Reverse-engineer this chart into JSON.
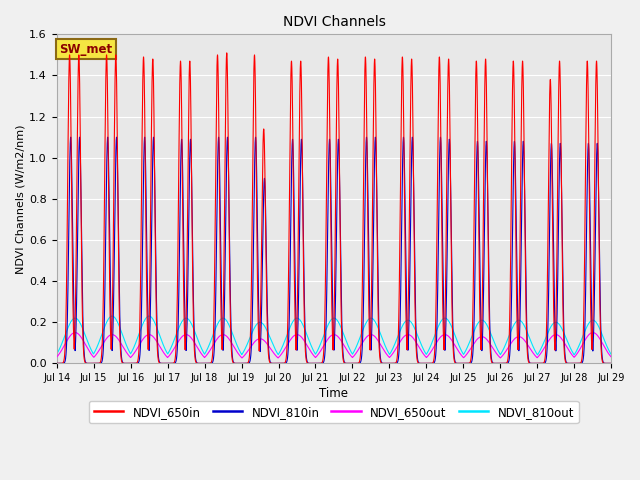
{
  "title": "NDVI Channels",
  "xlabel": "Time",
  "ylabel": "NDVI Channels (W/m2/nm)",
  "ylim": [
    0.0,
    1.6
  ],
  "yticks": [
    0.0,
    0.2,
    0.4,
    0.6,
    0.8,
    1.0,
    1.2,
    1.4,
    1.6
  ],
  "xtick_labels": [
    "Jul 14",
    "Jul 15",
    "Jul 16",
    "Jul 17",
    "Jul 18",
    "Jul 19",
    "Jul 20",
    "Jul 21",
    "Jul 22",
    "Jul 23",
    "Jul 24",
    "Jul 25",
    "Jul 26",
    "Jul 27",
    "Jul 28",
    "Jul 29"
  ],
  "annotation_text": "SW_met",
  "annotation_bg": "#f5e642",
  "annotation_border": "#8b6914",
  "annotation_text_color": "#8b0000",
  "colors": {
    "NDVI_650in": "#ff0000",
    "NDVI_810in": "#0000cc",
    "NDVI_650out": "#ff00ff",
    "NDVI_810out": "#00e5ff"
  },
  "fig_bg": "#f0f0f0",
  "plot_bg": "#e8e8e8",
  "grid_color": "#ffffff",
  "num_days": 15,
  "peak_650in": [
    1.5,
    1.5,
    1.49,
    1.47,
    1.5,
    1.5,
    1.47,
    1.49,
    1.49,
    1.49,
    1.49,
    1.47,
    1.47,
    1.38,
    1.47
  ],
  "peak_650in_2": [
    1.5,
    1.5,
    1.48,
    1.47,
    1.51,
    1.14,
    1.47,
    1.48,
    1.48,
    1.48,
    1.48,
    1.48,
    1.47,
    1.47,
    1.47
  ],
  "peak_810in": [
    1.1,
    1.1,
    1.1,
    1.09,
    1.1,
    1.1,
    1.09,
    1.09,
    1.1,
    1.1,
    1.1,
    1.08,
    1.08,
    1.07,
    1.07
  ],
  "peak_810in_2": [
    1.1,
    1.1,
    1.1,
    1.09,
    1.1,
    0.9,
    1.09,
    1.09,
    1.1,
    1.1,
    1.09,
    1.08,
    1.08,
    1.07,
    1.07
  ],
  "peak_650out": [
    0.15,
    0.14,
    0.14,
    0.14,
    0.14,
    0.12,
    0.14,
    0.14,
    0.14,
    0.14,
    0.14,
    0.13,
    0.13,
    0.14,
    0.15
  ],
  "peak_810out": [
    0.22,
    0.23,
    0.23,
    0.22,
    0.22,
    0.2,
    0.22,
    0.22,
    0.22,
    0.21,
    0.22,
    0.21,
    0.21,
    0.2,
    0.21
  ]
}
